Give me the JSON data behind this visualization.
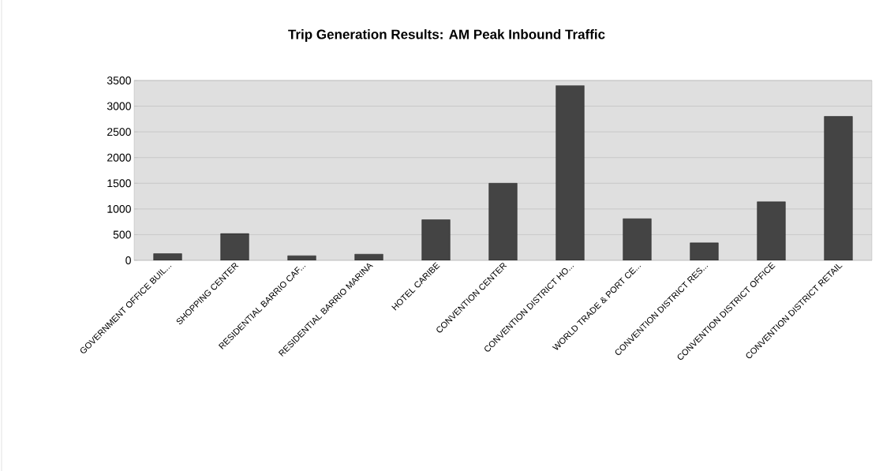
{
  "chart_data": {
    "type": "bar",
    "title": "Trip  Generation  Results:  AM  Peak  Inbound  Traffic",
    "categories": [
      "GOVERNMENT OFFICE BUIL...",
      "SHOPPING CENTER",
      "RESIDENTIAL BARRIO CAF...",
      "RESIDENTIAL BARRIO MARINA",
      "HOTEL CARIBE",
      "CONVENTION CENTER",
      "CONVENTION DISTRICT HO...",
      "WORLD TRADE & PORT CE...",
      "CONVENTION DISTRICT RES...",
      "CONVENTION DISTRICT OFFICE",
      "CONVENTION DISTRICT RETAIL"
    ],
    "values": [
      130,
      520,
      90,
      120,
      790,
      1500,
      3400,
      810,
      340,
      1140,
      2800
    ],
    "color": "#444444",
    "ylim": [
      0,
      3500
    ],
    "yticks": [
      0,
      500,
      1000,
      1500,
      2000,
      2500,
      3000,
      3500
    ],
    "grid": "y"
  }
}
